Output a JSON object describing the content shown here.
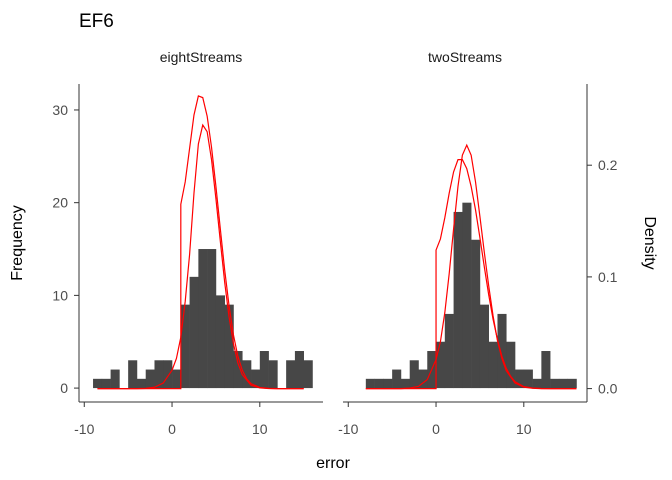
{
  "chart_data": {
    "type": "bar",
    "title": "EF6",
    "xlabel": "error",
    "ylabel": "Frequency",
    "ylabel_right": "Density",
    "xlim": [
      -10.6,
      17.2
    ],
    "xticks": [
      -10,
      0,
      10
    ],
    "ylim": [
      -1.5,
      32.8
    ],
    "yticks": [
      0,
      10,
      20,
      30
    ],
    "ylim_right": [
      -0.012,
      0.2727
    ],
    "yticks_right": [
      0.0,
      0.1,
      0.2
    ],
    "yticks_right_labels": [
      "0.0",
      "0.1",
      "0.2"
    ],
    "bin_width": 1,
    "grid": false,
    "panels": [
      {
        "name": "eightStreams",
        "bins_start": [
          -9,
          -8,
          -7,
          -6,
          -5,
          -4,
          -3,
          -2,
          -1,
          0,
          1,
          2,
          3,
          4,
          5,
          6,
          7,
          8,
          9,
          10,
          11,
          12,
          13,
          14,
          15
        ],
        "counts": [
          1,
          1,
          2,
          0,
          3,
          1,
          2,
          3,
          3,
          2,
          9,
          12,
          15,
          15,
          10,
          9,
          4,
          3,
          2,
          4,
          3,
          0,
          3,
          4,
          3
        ],
        "density_curves": [
          {
            "x": [
              -8.5,
              1,
              1,
              1.5,
              2,
              2.5,
              3,
              3.5,
              4,
              4.5,
              5,
              5.5,
              6,
              6.5,
              7,
              7.5,
              8,
              8.5,
              9,
              10,
              11,
              12,
              13,
              14,
              15
            ],
            "y": [
              0.0,
              0.0,
              0.165,
              0.185,
              0.215,
              0.245,
              0.262,
              0.2605,
              0.244,
              0.216,
              0.181,
              0.143,
              0.106,
              0.074,
              0.048,
              0.029,
              0.0165,
              0.0088,
              0.0044,
              0.001,
              0.0002,
              0.0,
              0.0,
              0.0,
              0.0
            ]
          },
          {
            "x": [
              -8.5,
              -6,
              -4,
              -3,
              -2,
              -1,
              0,
              0.5,
              1,
              1.5,
              2,
              2.5,
              3,
              3.5,
              4,
              4.5,
              5,
              5.5,
              6,
              6.5,
              7,
              7.5,
              8,
              9,
              10,
              11,
              12,
              13,
              14,
              15
            ],
            "y": [
              0.0,
              0.0,
              0.0,
              0.0002,
              0.0012,
              0.005,
              0.0165,
              0.027,
              0.046,
              0.078,
              0.12,
              0.175,
              0.219,
              0.236,
              0.23,
              0.205,
              0.17,
              0.132,
              0.095,
              0.064,
              0.04,
              0.023,
              0.0125,
              0.003,
              0.0006,
              0.0001,
              0.0,
              0.0,
              0.0,
              0.0
            ]
          }
        ]
      },
      {
        "name": "twoStreams",
        "bins_start": [
          -8,
          -7,
          -6,
          -5,
          -4,
          -3,
          -2,
          -1,
          0,
          1,
          2,
          3,
          4,
          5,
          6,
          7,
          8,
          9,
          10,
          11,
          12,
          13,
          14,
          15
        ],
        "counts": [
          1,
          1,
          1,
          2,
          1,
          3,
          2,
          4,
          5,
          8,
          19,
          20,
          16,
          9,
          5,
          8,
          5,
          2,
          2,
          1,
          4,
          1,
          1,
          1
        ],
        "density_curves": [
          {
            "x": [
              -8,
              -4,
              -2,
              -1,
              0,
              0,
              0.5,
              1,
              1.5,
              2,
              2.5,
              3,
              3.5,
              4,
              4.5,
              5,
              5.5,
              6,
              6.5,
              7,
              7.5,
              8,
              8.5,
              9,
              10,
              11,
              12,
              13,
              14,
              15,
              16
            ],
            "y": [
              0.0,
              0.0,
              0.0,
              0.0,
              0.0,
              0.124,
              0.134,
              0.153,
              0.175,
              0.194,
              0.205,
              0.205,
              0.197,
              0.181,
              0.16,
              0.135,
              0.109,
              0.084,
              0.062,
              0.044,
              0.029,
              0.0182,
              0.011,
              0.0062,
              0.0018,
              0.0005,
              0.0001,
              0.0,
              0.0,
              0.0,
              0.0
            ]
          },
          {
            "x": [
              -8,
              -4,
              -3,
              -2,
              -1,
              0,
              0.5,
              1,
              1.5,
              2,
              2.5,
              3,
              3.5,
              4,
              4.5,
              5,
              5.5,
              6,
              6.5,
              7,
              7.5,
              8,
              9,
              10,
              11,
              12,
              13,
              14,
              15,
              16
            ],
            "y": [
              0.0,
              0.0,
              0.0005,
              0.002,
              0.008,
              0.026,
              0.042,
              0.068,
              0.103,
              0.143,
              0.181,
              0.209,
              0.218,
              0.209,
              0.185,
              0.154,
              0.122,
              0.092,
              0.065,
              0.043,
              0.027,
              0.016,
              0.005,
              0.0013,
              0.0003,
              0.0,
              0.0,
              0.0,
              0.0,
              0.0
            ]
          }
        ]
      }
    ],
    "colors": {
      "bar": "#474747",
      "curve": "#ff0000"
    }
  }
}
